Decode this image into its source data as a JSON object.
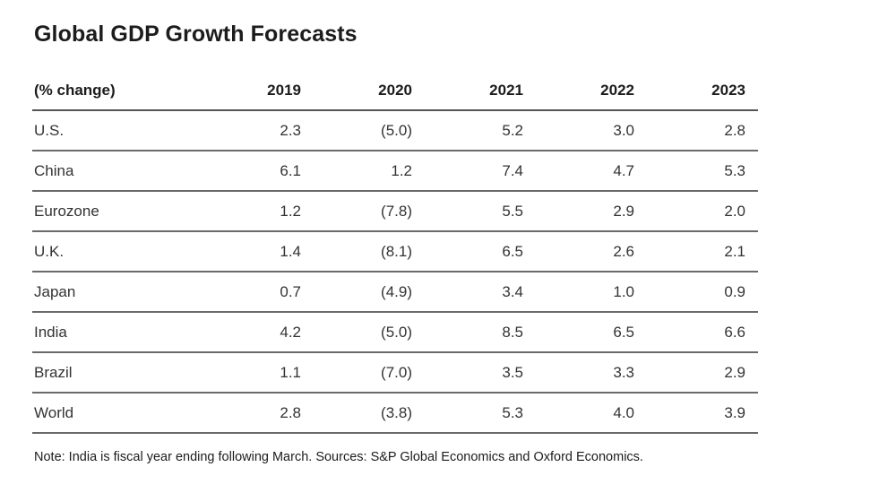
{
  "chart_data": {
    "type": "table",
    "title": "Global GDP Growth Forecasts",
    "row_header": "(% change)",
    "columns": [
      "2019",
      "2020",
      "2021",
      "2022",
      "2023"
    ],
    "rows": [
      {
        "label": "U.S.",
        "values": [
          "2.3",
          "(5.0)",
          "5.2",
          "3.0",
          "2.8"
        ]
      },
      {
        "label": "China",
        "values": [
          "6.1",
          "1.2",
          "7.4",
          "4.7",
          "5.3"
        ]
      },
      {
        "label": "Eurozone",
        "values": [
          "1.2",
          "(7.8)",
          "5.5",
          "2.9",
          "2.0"
        ]
      },
      {
        "label": "U.K.",
        "values": [
          "1.4",
          "(8.1)",
          "6.5",
          "2.6",
          "2.1"
        ]
      },
      {
        "label": "Japan",
        "values": [
          "0.7",
          "(4.9)",
          "3.4",
          "1.0",
          "0.9"
        ]
      },
      {
        "label": "India",
        "values": [
          "4.2",
          "(5.0)",
          "8.5",
          "6.5",
          "6.6"
        ]
      },
      {
        "label": "Brazil",
        "values": [
          "1.1",
          "(7.0)",
          "3.5",
          "3.3",
          "2.9"
        ]
      },
      {
        "label": "World",
        "values": [
          "2.8",
          "(3.8)",
          "5.3",
          "4.0",
          "3.9"
        ]
      }
    ],
    "note": "Note: India is fiscal year ending following March. Sources: S&P Global Economics and Oxford Economics."
  }
}
